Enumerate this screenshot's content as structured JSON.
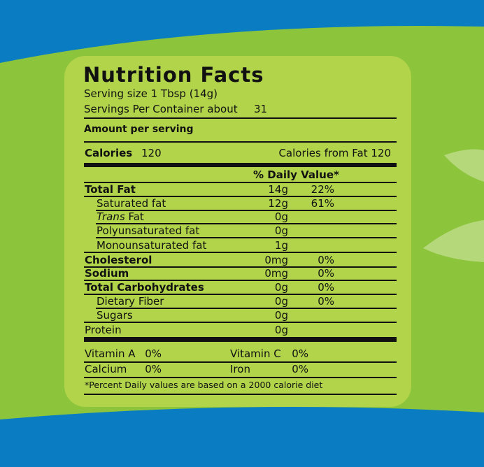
{
  "title": "Nutrition Facts",
  "serving_size": "Serving size 1 Tbsp (14g)",
  "servings_label": "Servings Per Container about",
  "servings": "31",
  "amount_per_serving": "Amount per serving",
  "calories_label": "Calories",
  "calories": "120",
  "calories_from_fat": "Calories from Fat 120",
  "daily_value_header": "% Daily Value*",
  "rows": [
    {
      "label": "Total Fat",
      "amount": "14g",
      "dv": "22%",
      "bold": true
    },
    {
      "label": "Saturated fat",
      "amount": "12g",
      "dv": "61%",
      "indent": true
    },
    {
      "label_em": "Trans",
      "label": "Fat",
      "amount": "0g",
      "indent": true
    },
    {
      "label": "Polyunsaturated fat",
      "amount": "0g",
      "indent": true
    },
    {
      "label": "Monounsaturated fat",
      "amount": "1g",
      "indent": true
    },
    {
      "label": "Cholesterol",
      "amount": "0mg",
      "dv": "0%",
      "bold": true
    },
    {
      "label": "Sodium",
      "amount": "0mg",
      "dv": "0%",
      "bold": true
    },
    {
      "label": "Total Carbohydrates",
      "amount": "0g",
      "dv": "0%",
      "bold": true
    },
    {
      "label": "Dietary Fiber",
      "amount": "0g",
      "dv": "0%",
      "indent": true
    },
    {
      "label": "Sugars",
      "amount": "0g",
      "indent": true
    },
    {
      "label": "Protein",
      "amount": "0g"
    }
  ],
  "vitamins": [
    [
      {
        "name": "Vitamin A",
        "dv": "0%"
      },
      {
        "name": "Vitamin C",
        "dv": "0%"
      }
    ],
    [
      {
        "name": "Calcium",
        "dv": "0%"
      },
      {
        "name": "Iron",
        "dv": "0%"
      }
    ]
  ],
  "footnote": "*Percent Daily values are based on a 2000 calorie diet"
}
